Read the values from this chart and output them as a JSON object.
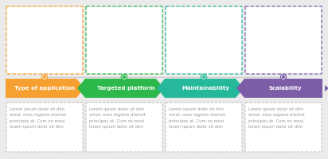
{
  "background_color": "#ebebeb",
  "steps": [
    {
      "title": "Type of application",
      "color": "#f5a030",
      "dot_color": "#f5a030",
      "text": "Lorem ipsum dolor sit dim\namet, mea regione diamet\nprincipes at. Cum no movi\nlorem ipsum dolor sit dim"
    },
    {
      "title": "Targeted platform",
      "color": "#2db84b",
      "dot_color": "#2db84b",
      "text": "Lorem ipsum dolor sit dim\namet, mea regione diamet\nprincipes at. Cum no movi\nlorem ipsum dolor sit dim"
    },
    {
      "title": "Maintainability",
      "color": "#26b89a",
      "dot_color": "#26b89a",
      "text": "Lorem ipsum dolor sit dim\namet, mea regione diamet\nprincipes at. Cum no movi\nlorem ipsum dolor sit dim"
    },
    {
      "title": "Scalability",
      "color": "#7b5ea7",
      "dot_color": "#7b5ea7",
      "text": "Lorem ipsum dolor sit dim\namet, mea regione diamet\nprincipes at. Cum no movi\nlorem ipsum dolor sit dim"
    }
  ],
  "text_color": "#999999",
  "title_text_color": "#ffffff",
  "figsize": [
    4.12,
    2.0
  ],
  "dpi": 100
}
